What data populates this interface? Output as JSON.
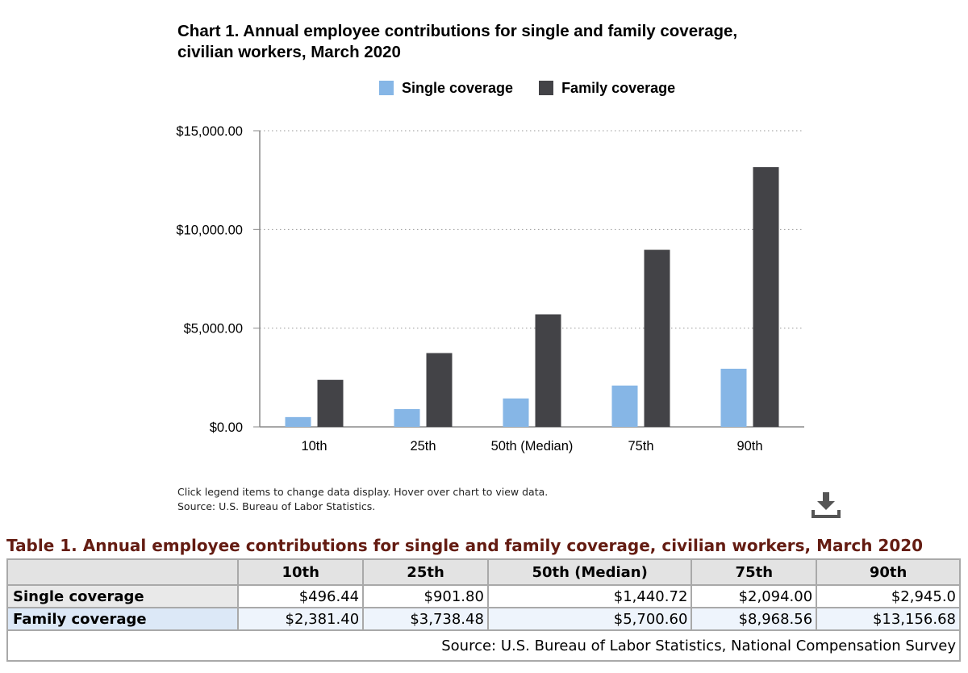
{
  "title_line1": "Chart 1. Annual employee contributions for single and family coverage,",
  "title_line2": "civilian workers, March 2020",
  "colors": {
    "single": "#86b6e6",
    "family": "#434347",
    "grid": "#9a9a9a",
    "axis": "#8a8a8a",
    "caption": "#641c12"
  },
  "chart_data": {
    "type": "bar",
    "title": "Chart 1. Annual employee contributions for single and family coverage, civilian workers, March 2020",
    "categories": [
      "10th",
      "25th",
      "50th (Median)",
      "75th",
      "90th"
    ],
    "series": [
      {
        "name": "Single coverage",
        "values": [
          496.44,
          901.8,
          1440.72,
          2094.0,
          2945.0
        ]
      },
      {
        "name": "Family coverage",
        "values": [
          2381.4,
          3738.48,
          5700.6,
          8968.56,
          13156.68
        ]
      }
    ],
    "y_ticks": [
      "$0.00",
      "$5,000.00",
      "$10,000.00",
      "$15,000.00"
    ],
    "y_tick_values": [
      0,
      5000,
      10000,
      15000
    ],
    "ylim": [
      0,
      15000
    ],
    "xlabel": "",
    "ylabel": "",
    "grid": true,
    "legend": "top"
  },
  "notes": {
    "line1": "Click legend items to change data display. Hover over chart to view data.",
    "line2": "Source: U.S. Bureau of Labor Statistics."
  },
  "download_icon": "download-icon",
  "table": {
    "caption": "Table 1. Annual employee contributions for single and family coverage, civilian workers, March 2020",
    "headers": [
      "",
      "10th",
      "25th",
      "50th (Median)",
      "75th",
      "90th"
    ],
    "rows": [
      {
        "label": "Single coverage",
        "cells": [
          "$496.44",
          "$901.80",
          "$1,440.72",
          "$2,094.00",
          "$2,945.0"
        ]
      },
      {
        "label": "Family coverage",
        "cells": [
          "$2,381.40",
          "$3,738.48",
          "$5,700.60",
          "$8,968.56",
          "$13,156.68"
        ]
      }
    ],
    "source": "Source: U.S. Bureau of Labor Statistics, National Compensation Survey"
  }
}
